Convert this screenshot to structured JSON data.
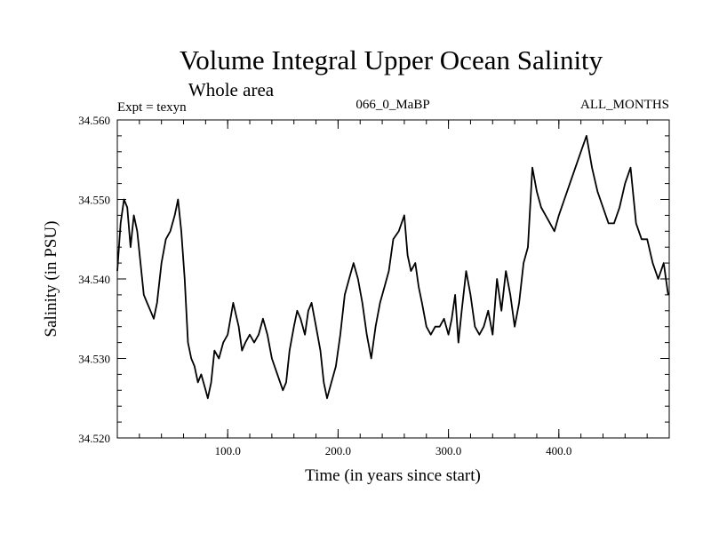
{
  "chart_data": {
    "type": "line",
    "title": "Volume Integral Upper Ocean Salinity",
    "subtitle": "Whole area",
    "annotations": {
      "left": "Expt = texyn",
      "center": "066_0_MaBP",
      "right": "ALL_MONTHS"
    },
    "xlabel": "Time (in years since start)",
    "ylabel": "Salinity (in PSU)",
    "xlim": [
      0,
      500
    ],
    "ylim": [
      34.52,
      34.56
    ],
    "x_ticks": [
      100,
      200,
      300,
      400
    ],
    "x_tick_labels": [
      "100.0",
      "200.0",
      "300.0",
      "400.0"
    ],
    "y_ticks": [
      34.52,
      34.53,
      34.54,
      34.55,
      34.56
    ],
    "y_tick_labels": [
      "34.520",
      "34.530",
      "34.540",
      "34.550",
      "34.560"
    ],
    "grid": false,
    "line_color": "#000000",
    "series": [
      {
        "x": [
          0,
          3,
          6,
          9,
          12,
          15,
          18,
          21,
          24,
          27,
          30,
          33,
          36,
          40,
          44,
          48,
          52,
          55,
          58,
          61,
          64,
          67,
          70,
          73,
          76,
          80,
          82,
          85,
          88,
          92,
          96,
          100,
          105,
          110,
          113,
          116,
          120,
          124,
          128,
          132,
          136,
          140,
          145,
          150,
          153,
          156,
          160,
          163,
          166,
          170,
          173,
          176,
          180,
          184,
          187,
          190,
          194,
          198,
          202,
          206,
          210,
          214,
          218,
          222,
          226,
          230,
          234,
          238,
          242,
          246,
          250,
          255,
          260,
          263,
          266,
          270,
          273,
          276,
          280,
          284,
          288,
          292,
          296,
          300,
          303,
          306,
          309,
          312,
          316,
          320,
          324,
          328,
          332,
          336,
          340,
          344,
          348,
          352,
          356,
          360,
          364,
          368,
          372,
          376,
          380,
          384,
          388,
          392,
          396,
          400,
          405,
          410,
          415,
          420,
          425,
          430,
          435,
          440,
          445,
          450,
          455,
          460,
          465,
          470,
          475,
          480,
          485,
          490,
          495,
          499
        ],
        "y": [
          34.541,
          34.547,
          34.55,
          34.549,
          34.544,
          34.548,
          34.546,
          34.542,
          34.538,
          34.537,
          34.536,
          34.535,
          34.537,
          34.542,
          34.545,
          34.546,
          34.548,
          34.55,
          34.546,
          34.54,
          34.532,
          34.53,
          34.529,
          34.527,
          34.528,
          34.526,
          34.525,
          34.527,
          34.531,
          34.53,
          34.532,
          34.533,
          34.537,
          34.534,
          34.531,
          34.532,
          34.533,
          34.532,
          34.533,
          34.535,
          34.533,
          34.53,
          34.528,
          34.526,
          34.527,
          34.531,
          34.534,
          34.536,
          34.535,
          34.533,
          34.536,
          34.537,
          34.534,
          34.531,
          34.527,
          34.525,
          34.527,
          34.529,
          34.533,
          34.538,
          34.54,
          34.542,
          34.54,
          34.537,
          34.533,
          34.53,
          34.534,
          34.537,
          34.539,
          34.541,
          34.545,
          34.546,
          34.548,
          34.543,
          34.541,
          34.542,
          34.539,
          34.537,
          34.534,
          34.533,
          34.534,
          34.534,
          34.535,
          34.533,
          34.535,
          34.538,
          34.532,
          34.536,
          34.541,
          34.538,
          34.534,
          34.533,
          34.534,
          34.536,
          34.533,
          34.54,
          34.536,
          34.541,
          34.538,
          34.534,
          34.537,
          34.542,
          34.544,
          34.554,
          34.551,
          34.549,
          34.548,
          34.547,
          34.546,
          34.548,
          34.55,
          34.552,
          34.554,
          34.556,
          34.558,
          34.554,
          34.551,
          34.549,
          34.547,
          34.547,
          34.549,
          34.552,
          34.554,
          34.547,
          34.545,
          34.545,
          34.542,
          34.54,
          34.542,
          34.538
        ]
      }
    ]
  }
}
